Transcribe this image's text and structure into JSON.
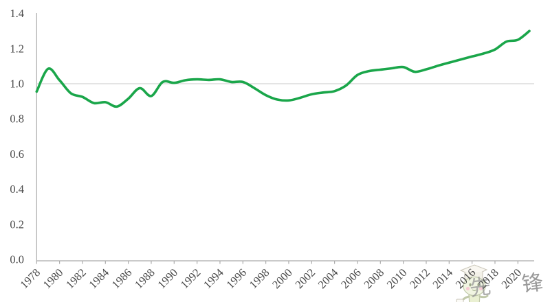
{
  "chart_data": {
    "type": "line",
    "title": "",
    "xlabel": "",
    "ylabel": "",
    "x": [
      1978,
      1979,
      1980,
      1981,
      1982,
      1983,
      1984,
      1985,
      1986,
      1987,
      1988,
      1989,
      1990,
      1991,
      1992,
      1993,
      1994,
      1995,
      1996,
      1997,
      1998,
      1999,
      2000,
      2001,
      2002,
      2003,
      2004,
      2005,
      2006,
      2007,
      2008,
      2009,
      2010,
      2011,
      2012,
      2013,
      2014,
      2015,
      2016,
      2017,
      2018,
      2019,
      2020,
      2021
    ],
    "series": [
      {
        "name": "",
        "values": [
          0.955,
          1.085,
          1.02,
          0.945,
          0.925,
          0.89,
          0.895,
          0.87,
          0.915,
          0.975,
          0.93,
          1.01,
          1.005,
          1.02,
          1.025,
          1.022,
          1.025,
          1.01,
          1.01,
          0.975,
          0.935,
          0.91,
          0.905,
          0.92,
          0.94,
          0.95,
          0.958,
          0.99,
          1.05,
          1.072,
          1.08,
          1.088,
          1.095,
          1.068,
          1.082,
          1.102,
          1.12,
          1.138,
          1.155,
          1.172,
          1.195,
          1.24,
          1.25,
          1.3
        ]
      }
    ],
    "ylim": [
      0,
      1.4
    ],
    "ytick_labels": [
      "0.0",
      "0.2",
      "0.4",
      "0.6",
      "0.8",
      "1.0",
      "1.2",
      "1.4"
    ],
    "xtick_labels": [
      "1978",
      "1980",
      "1982",
      "1984",
      "1986",
      "1988",
      "1990",
      "1992",
      "1994",
      "1996",
      "1998",
      "2000",
      "2002",
      "2004",
      "2006",
      "2008",
      "2010",
      "2012",
      "2014",
      "2016",
      "2018",
      "2020"
    ],
    "grid": false,
    "legend": "none",
    "reference_line_y": 1.0,
    "line_color": "#1aa64a",
    "axis_color": "#ababab",
    "reference_line_color": "#c8c8c8",
    "tick_label_color": "#4a4a4a"
  },
  "watermark": {
    "partial_char": "先",
    "end_char": "锋",
    "visible_text": "先锋",
    "mascot": "graduation-cap-bean-mascot",
    "text_color": "#959595"
  }
}
